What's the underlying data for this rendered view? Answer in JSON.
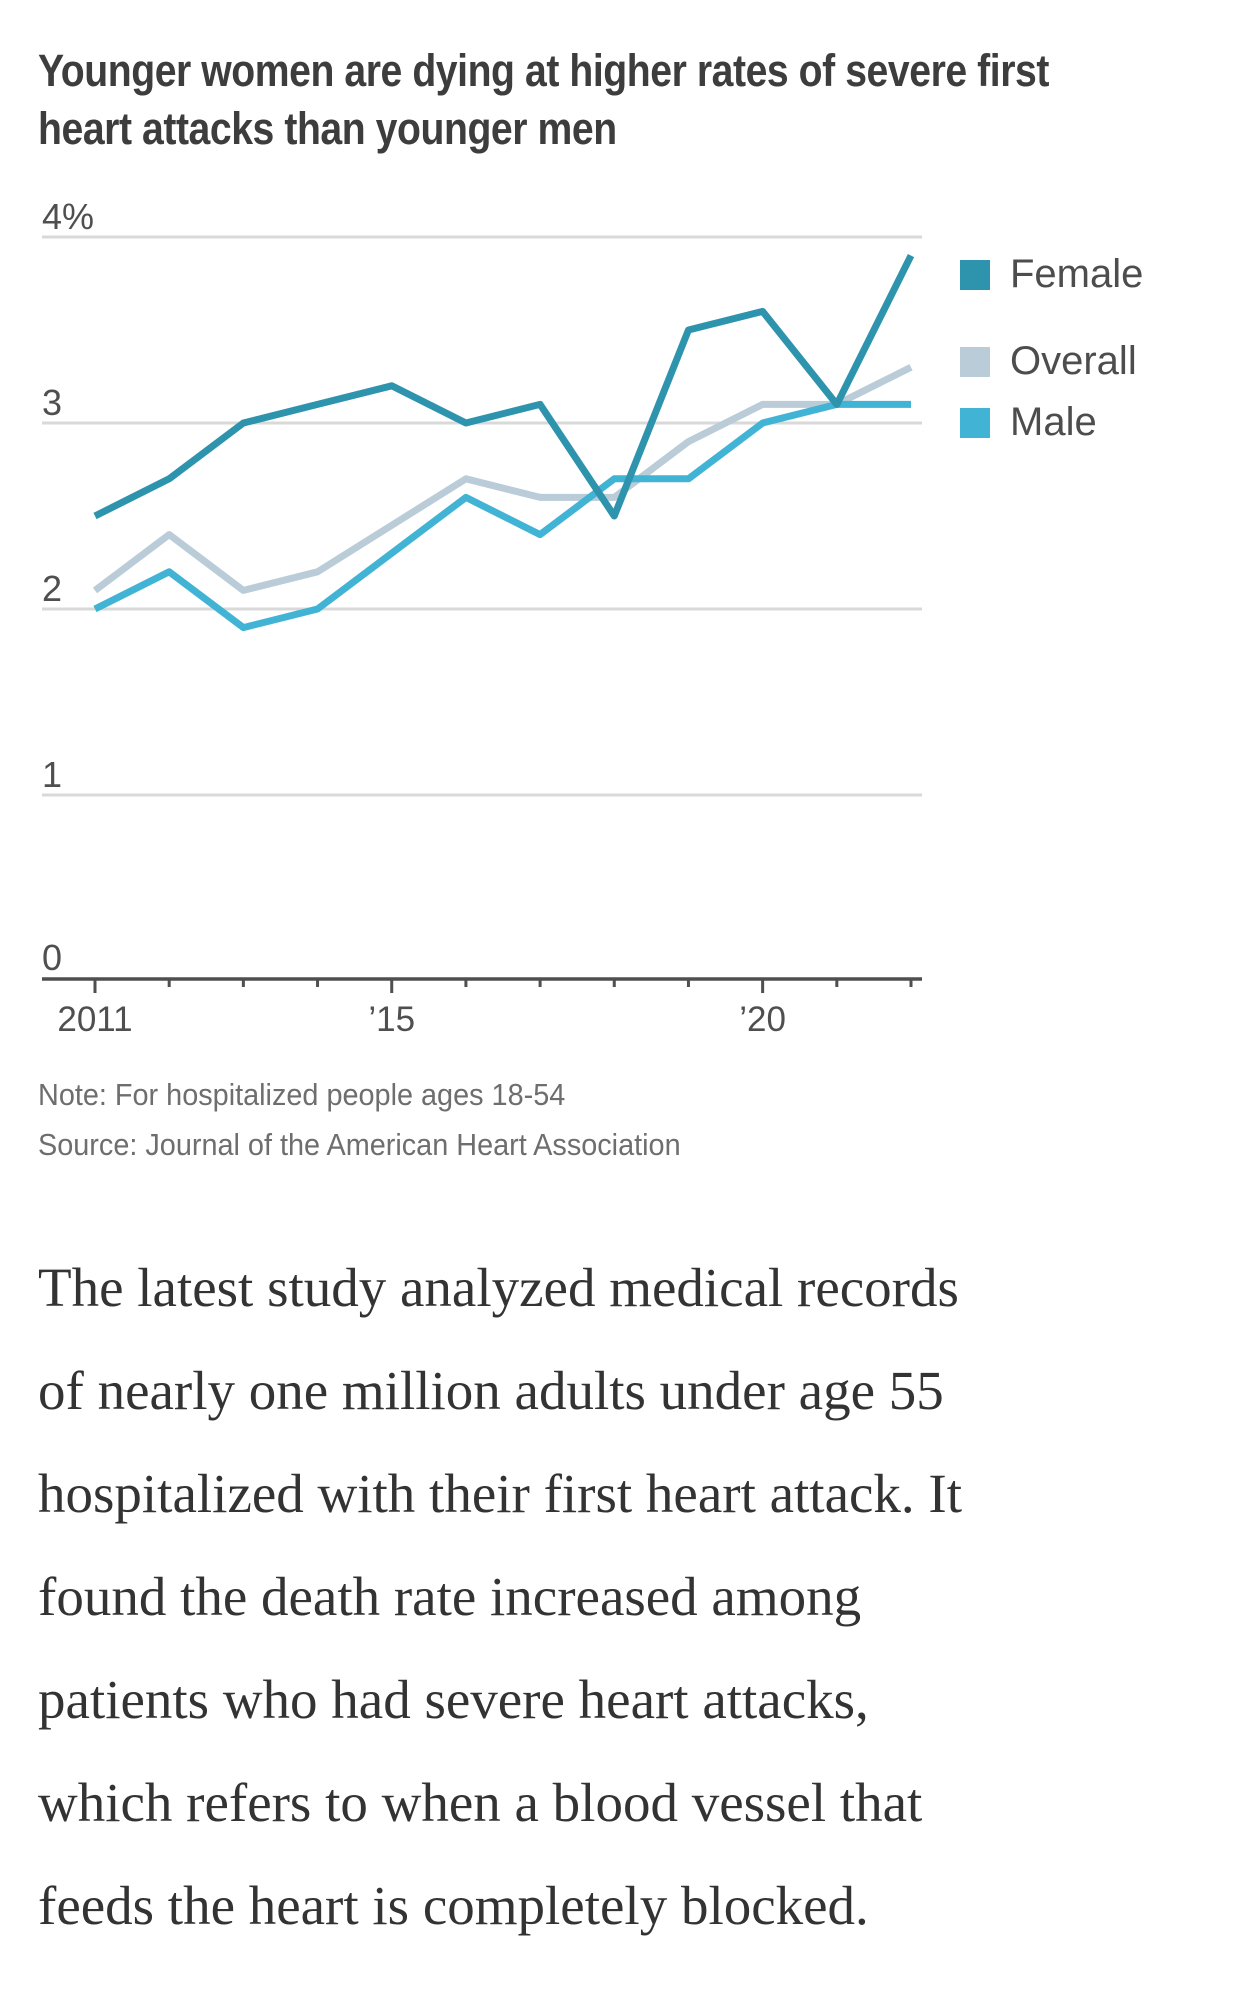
{
  "title": {
    "lines": [
      "Younger women are dying at higher rates of severe first",
      "heart attacks than younger men"
    ]
  },
  "legend": {
    "items": [
      {
        "label": "Female",
        "color": "#2e93ad"
      },
      {
        "label": "Overall",
        "color": "#b9ccd8"
      },
      {
        "label": "Male",
        "color": "#41b3d4"
      }
    ]
  },
  "footnote": {
    "note": "Note: For hospitalized people ages 18-54",
    "source": "Source: Journal of the American Heart Association"
  },
  "article": {
    "lines": [
      "The latest study analyzed medical records",
      "of nearly one million adults under age 55",
      "hospitalized with their first heart attack. It",
      "found the death rate increased among",
      "patients who had severe heart attacks,",
      "which refers to when a blood vessel that",
      "feeds the heart is completely blocked."
    ]
  },
  "chart_data": {
    "type": "line",
    "title": "Younger women are dying at higher rates of severe first heart attacks than younger men",
    "unit": "%",
    "x": [
      2011,
      2012,
      2013,
      2014,
      2015,
      2016,
      2017,
      2018,
      2019,
      2020,
      2021,
      2022
    ],
    "series": [
      {
        "name": "Female",
        "color": "#2e93ad",
        "values": [
          2.5,
          2.7,
          3.0,
          3.1,
          3.2,
          3.0,
          3.1,
          2.5,
          3.5,
          3.6,
          3.1,
          3.9
        ]
      },
      {
        "name": "Overall",
        "color": "#b9ccd8",
        "values": [
          2.1,
          2.4,
          2.1,
          2.2,
          2.45,
          2.7,
          2.6,
          2.6,
          2.9,
          3.1,
          3.1,
          3.3
        ]
      },
      {
        "name": "Male",
        "color": "#41b3d4",
        "values": [
          2.0,
          2.2,
          1.9,
          2.0,
          2.3,
          2.6,
          2.4,
          2.7,
          2.7,
          3.0,
          3.1,
          3.1
        ]
      }
    ],
    "ylim": [
      0,
      4
    ],
    "yticks": [
      {
        "value": 4,
        "label": "4%"
      },
      {
        "value": 3,
        "label": "3"
      },
      {
        "value": 2,
        "label": "2"
      },
      {
        "value": 1,
        "label": "1"
      },
      {
        "value": 0,
        "label": "0"
      }
    ],
    "xticks": [
      {
        "year": 2011,
        "label": "2011"
      },
      {
        "year": 2015,
        "label": "’15"
      },
      {
        "year": 2020,
        "label": "’20"
      }
    ],
    "grid": "horizontal",
    "legend_position": "right",
    "colors": {
      "gridline": "#d9d9d9",
      "axis": "#4f4f4f",
      "axis_text": "#4f4f4f"
    }
  }
}
